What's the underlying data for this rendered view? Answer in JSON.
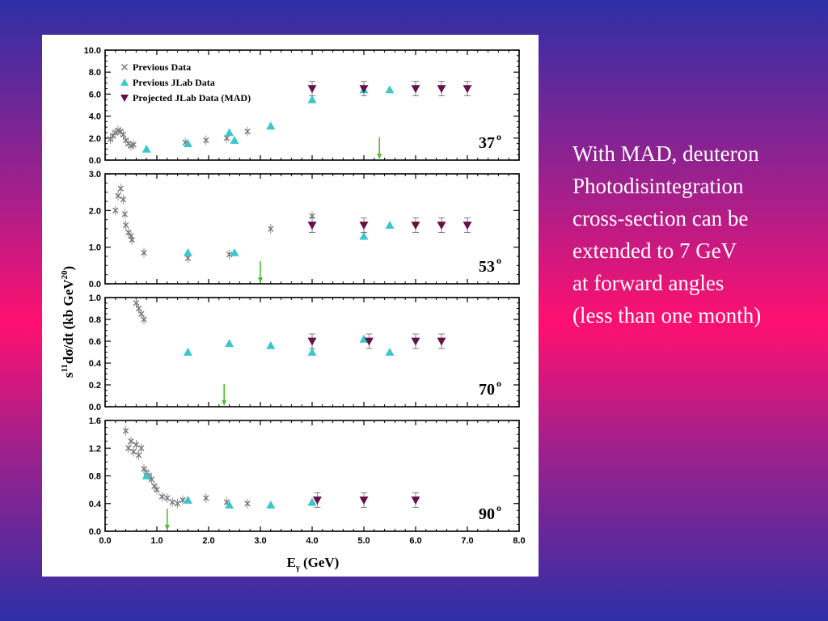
{
  "caption": {
    "lines": [
      "With MAD, deuteron",
      "Photodisintegration",
      "cross-section can be",
      "extended to 7 GeV",
      "at forward angles",
      "(less than one month)"
    ]
  },
  "chart_data": {
    "type": "scatter",
    "xlabel": "Eγ (GeV)",
    "xlabel_main": "E",
    "xlabel_sub": "γ",
    "xlabel_unit": " (GeV)",
    "ylabel": "s11 dσ/dt (kb GeV20)",
    "ylabel_main": "s",
    "ylabel_sup": "11",
    "ylabel_mid": "dσ/dt (kb GeV",
    "ylabel_sup2": "20",
    "ylabel_end": ")",
    "xlim": [
      0,
      8
    ],
    "xticks": [
      "0.0",
      "1.0",
      "2.0",
      "3.0",
      "4.0",
      "5.0",
      "6.0",
      "7.0",
      "8.0"
    ],
    "legend": {
      "placement": "top-left",
      "entries": [
        {
          "label": "Previous Data",
          "marker": "x",
          "color": "#777777"
        },
        {
          "label": "Previous JLab Data",
          "marker": "triangle-up",
          "color": "#3cc6cc"
        },
        {
          "label": "Projected JLab Data (MAD)",
          "marker": "triangle-down",
          "color": "#66104a"
        }
      ]
    },
    "colors": {
      "previous": "#777777",
      "jlab": "#3cc6cc",
      "projected": "#66104a",
      "arrow": "#55bb33"
    },
    "panels": [
      {
        "angle": "37",
        "angle_sup": "o",
        "ylim": [
          0,
          10
        ],
        "yticks": [
          "0.0",
          "2.0",
          "4.0",
          "6.0",
          "8.0",
          "10.0"
        ],
        "arrow_x": 5.3,
        "previous": [
          [
            0.1,
            1.9
          ],
          [
            0.15,
            2.2
          ],
          [
            0.2,
            2.5
          ],
          [
            0.25,
            2.7
          ],
          [
            0.3,
            2.6
          ],
          [
            0.35,
            2.3
          ],
          [
            0.4,
            1.8
          ],
          [
            0.45,
            1.5
          ],
          [
            0.5,
            1.3
          ],
          [
            0.55,
            1.4
          ],
          [
            1.55,
            1.6
          ],
          [
            1.95,
            1.8
          ],
          [
            2.35,
            2.0
          ],
          [
            2.75,
            2.6
          ]
        ],
        "jlab": [
          [
            0.8,
            1.0
          ],
          [
            1.6,
            1.5
          ],
          [
            2.4,
            2.5
          ],
          [
            2.5,
            1.8
          ],
          [
            3.2,
            3.1
          ],
          [
            4.0,
            5.5
          ],
          [
            5.0,
            6.4
          ],
          [
            5.5,
            6.4
          ]
        ],
        "projected": [
          [
            4.0,
            6.5
          ],
          [
            5.0,
            6.5
          ],
          [
            6.0,
            6.5
          ],
          [
            6.5,
            6.5
          ],
          [
            7.0,
            6.5
          ]
        ]
      },
      {
        "angle": "53",
        "angle_sup": "o",
        "ylim": [
          0,
          3
        ],
        "yticks": [
          "0.0",
          "1.0",
          "2.0",
          "3.0"
        ],
        "arrow_x": 3.0,
        "previous": [
          [
            0.2,
            2.0
          ],
          [
            0.25,
            2.4
          ],
          [
            0.3,
            2.6
          ],
          [
            0.35,
            2.3
          ],
          [
            0.38,
            1.9
          ],
          [
            0.4,
            1.6
          ],
          [
            0.45,
            1.4
          ],
          [
            0.5,
            1.3
          ],
          [
            0.52,
            1.2
          ],
          [
            0.75,
            0.85
          ],
          [
            1.6,
            0.7
          ],
          [
            2.4,
            0.8
          ],
          [
            3.2,
            1.5
          ],
          [
            4.0,
            1.85
          ]
        ],
        "jlab": [
          [
            1.6,
            0.85
          ],
          [
            2.5,
            0.85
          ],
          [
            5.0,
            1.3
          ],
          [
            5.5,
            1.6
          ]
        ],
        "projected": [
          [
            4.0,
            1.6
          ],
          [
            5.0,
            1.6
          ],
          [
            6.0,
            1.6
          ],
          [
            6.5,
            1.6
          ],
          [
            7.0,
            1.6
          ]
        ]
      },
      {
        "angle": "70",
        "angle_sup": "o",
        "ylim": [
          0,
          1
        ],
        "yticks": [
          "0.0",
          "0.2",
          "0.4",
          "0.6",
          "0.8",
          "1.0"
        ],
        "arrow_x": 2.3,
        "previous": [
          [
            0.6,
            0.95
          ],
          [
            0.65,
            0.9
          ],
          [
            0.7,
            0.85
          ],
          [
            0.75,
            0.8
          ]
        ],
        "jlab": [
          [
            1.6,
            0.5
          ],
          [
            2.4,
            0.58
          ],
          [
            3.2,
            0.56
          ],
          [
            4.0,
            0.5
          ],
          [
            5.0,
            0.62
          ],
          [
            5.5,
            0.5
          ]
        ],
        "projected": [
          [
            4.0,
            0.6
          ],
          [
            5.1,
            0.6
          ],
          [
            6.0,
            0.6
          ],
          [
            6.5,
            0.6
          ]
        ]
      },
      {
        "angle": "90",
        "angle_sup": "o",
        "ylim": [
          0,
          1.6
        ],
        "yticks": [
          "0.0",
          "0.4",
          "0.8",
          "1.2",
          "1.6"
        ],
        "arrow_x": 1.2,
        "previous": [
          [
            0.4,
            1.45
          ],
          [
            0.45,
            1.2
          ],
          [
            0.5,
            1.3
          ],
          [
            0.55,
            1.15
          ],
          [
            0.6,
            1.25
          ],
          [
            0.65,
            1.1
          ],
          [
            0.7,
            1.2
          ],
          [
            0.75,
            0.9
          ],
          [
            0.8,
            0.85
          ],
          [
            0.85,
            0.8
          ],
          [
            0.9,
            0.75
          ],
          [
            0.95,
            0.65
          ],
          [
            1.0,
            0.6
          ],
          [
            1.1,
            0.5
          ],
          [
            1.2,
            0.48
          ],
          [
            1.3,
            0.42
          ],
          [
            1.4,
            0.4
          ],
          [
            1.5,
            0.45
          ],
          [
            1.95,
            0.48
          ],
          [
            2.35,
            0.42
          ],
          [
            2.75,
            0.4
          ]
        ],
        "jlab": [
          [
            0.8,
            0.8
          ],
          [
            1.6,
            0.45
          ],
          [
            2.4,
            0.38
          ],
          [
            3.2,
            0.38
          ],
          [
            4.0,
            0.42
          ]
        ],
        "projected": [
          [
            4.1,
            0.45
          ],
          [
            5.0,
            0.45
          ],
          [
            6.0,
            0.45
          ]
        ]
      }
    ]
  }
}
